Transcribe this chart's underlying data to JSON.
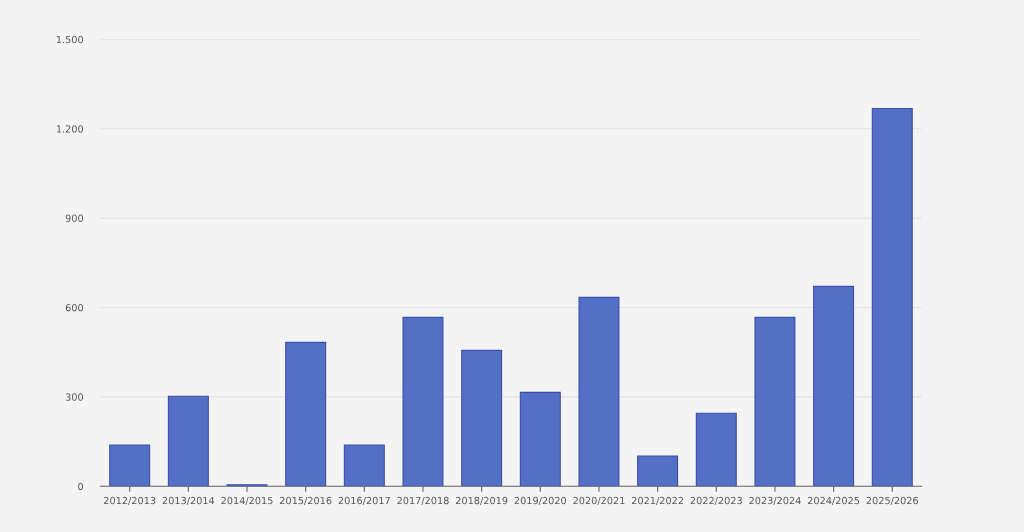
{
  "chart_data": {
    "type": "bar",
    "categories": [
      "2012/2013",
      "2013/2014",
      "2014/2015",
      "2015/2016",
      "2016/2017",
      "2017/2018",
      "2018/2019",
      "2019/2020",
      "2020/2021",
      "2021/2022",
      "2022/2023",
      "2023/2024",
      "2024/2025",
      "2025/2026"
    ],
    "values": [
      138,
      302,
      5,
      483,
      138,
      567,
      456,
      315,
      634,
      101,
      245,
      567,
      671,
      1268
    ],
    "color": "#5470c6",
    "ylim": [
      0,
      1500
    ],
    "yticks": [
      0,
      300,
      600,
      900,
      {
        "value": 1200,
        "label": "1.200"
      },
      {
        "value": 1500,
        "label": "1.500"
      }
    ],
    "grid": "y"
  }
}
